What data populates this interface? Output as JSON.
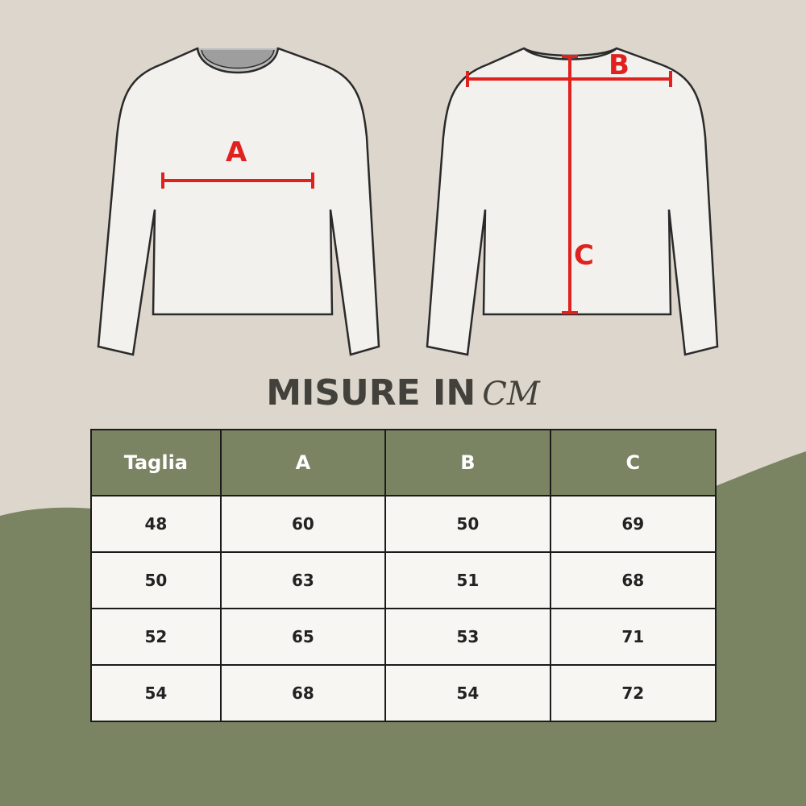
{
  "diagram": {
    "labels": [
      "A",
      "B",
      "C"
    ],
    "shirt_colors": {
      "fill": "#f2f1ee",
      "outline": "#2a2a2a",
      "measure": "#e0221f"
    }
  },
  "title": {
    "text": "MISURE IN",
    "unit": "CM"
  },
  "table": {
    "headers": [
      "Taglia",
      "A",
      "B",
      "C"
    ],
    "rows": [
      [
        "48",
        "60",
        "50",
        "69"
      ],
      [
        "50",
        "63",
        "51",
        "68"
      ],
      [
        "52",
        "65",
        "53",
        "71"
      ],
      [
        "54",
        "68",
        "54",
        "72"
      ]
    ]
  },
  "colors": {
    "background": "#dcd6cc",
    "accent_green": "#7a8462",
    "text_dark": "#43413b"
  }
}
